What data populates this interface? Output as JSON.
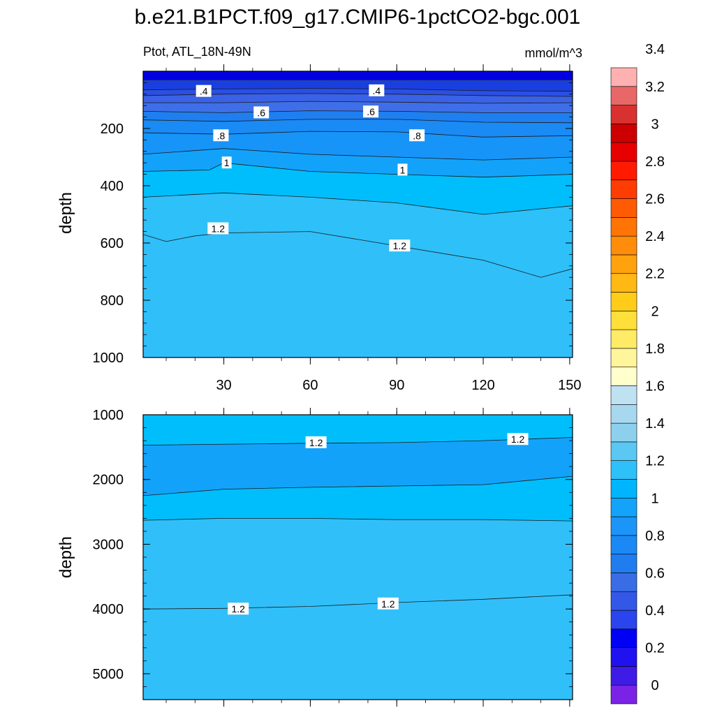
{
  "figure": {
    "title": "b.e21.B1PCT.f09_g17.CMIP6-1pctCO2-bgc.001",
    "variable_label": "Ptot, ATL_18N-49N",
    "units": "mmol/m^3"
  },
  "chart_data": [
    {
      "type": "contour",
      "panel": "upper",
      "ylabel": "depth",
      "y_reversed": true,
      "xlim": [
        2,
        151
      ],
      "ylim": [
        0,
        1000
      ],
      "x_ticks": [
        30,
        60,
        90,
        120,
        150
      ],
      "x_tick_labels": [
        "30",
        "60",
        "90",
        "120",
        "150"
      ],
      "y_ticks": [
        200,
        400,
        600,
        800,
        1000
      ],
      "y_tick_labels": [
        "200",
        "400",
        "600",
        "800",
        "1000"
      ],
      "bands": [
        {
          "level": 0.2,
          "color": "#0000E0",
          "profile": [
            [
              2,
              30
            ],
            [
              150,
              30
            ]
          ]
        },
        {
          "level": 0.3,
          "color": "#1A3FE0",
          "profile": [
            [
              2,
              65
            ],
            [
              30,
              62
            ],
            [
              60,
              60
            ],
            [
              90,
              62
            ],
            [
              120,
              68
            ],
            [
              150,
              70
            ]
          ]
        },
        {
          "level": 0.4,
          "color": "#2A4FE2",
          "profile": [
            [
              2,
              85
            ],
            [
              30,
              80
            ],
            [
              60,
              78
            ],
            [
              90,
              80
            ],
            [
              120,
              85
            ],
            [
              150,
              88
            ]
          ]
        },
        {
          "level": 0.5,
          "color": "#3A62E6",
          "profile": [
            [
              2,
              110
            ],
            [
              30,
              110
            ],
            [
              60,
              105
            ],
            [
              90,
              108
            ],
            [
              120,
              112
            ],
            [
              150,
              110
            ]
          ]
        },
        {
          "level": 0.6,
          "color": "#3F6FE8",
          "profile": [
            [
              2,
              140
            ],
            [
              30,
              145
            ],
            [
              60,
              138
            ],
            [
              90,
              140
            ],
            [
              120,
              145
            ],
            [
              150,
              145
            ]
          ]
        },
        {
          "level": 0.7,
          "color": "#1E7FF0",
          "profile": [
            [
              2,
              170
            ],
            [
              30,
              175
            ],
            [
              60,
              168
            ],
            [
              90,
              168
            ],
            [
              120,
              178
            ],
            [
              150,
              180
            ]
          ]
        },
        {
          "level": 0.8,
          "color": "#1A8AF5",
          "profile": [
            [
              2,
              215
            ],
            [
              30,
              220
            ],
            [
              60,
              210
            ],
            [
              90,
              212
            ],
            [
              120,
              230
            ],
            [
              150,
              225
            ]
          ]
        },
        {
          "level": 0.9,
          "color": "#1794F8",
          "profile": [
            [
              2,
              290
            ],
            [
              30,
              270
            ],
            [
              60,
              290
            ],
            [
              90,
              300
            ],
            [
              120,
              310
            ],
            [
              150,
              300
            ]
          ]
        },
        {
          "level": 1.0,
          "color": "#13A2FA",
          "profile": [
            [
              2,
              350
            ],
            [
              25,
              345
            ],
            [
              30,
              320
            ],
            [
              60,
              350
            ],
            [
              90,
              360
            ],
            [
              120,
              370
            ],
            [
              150,
              360
            ]
          ]
        },
        {
          "level": 1.1,
          "color": "#00BEFC",
          "profile": [
            [
              2,
              440
            ],
            [
              30,
              425
            ],
            [
              60,
              440
            ],
            [
              90,
              460
            ],
            [
              120,
              500
            ],
            [
              150,
              470
            ]
          ]
        },
        {
          "level": 1.2,
          "color": "#2EC0F8",
          "profile": [
            [
              2,
              570
            ],
            [
              10,
              595
            ],
            [
              20,
              575
            ],
            [
              30,
              565
            ],
            [
              60,
              560
            ],
            [
              90,
              610
            ],
            [
              120,
              660
            ],
            [
              140,
              720
            ],
            [
              150,
              690
            ]
          ]
        }
      ],
      "contour_labels": [
        {
          "text": ".4",
          "x": 23,
          "y": 70
        },
        {
          "text": ".4",
          "x": 83,
          "y": 68
        },
        {
          "text": ".6",
          "x": 43,
          "y": 145
        },
        {
          "text": ".6",
          "x": 81,
          "y": 142
        },
        {
          "text": ".8",
          "x": 29,
          "y": 225
        },
        {
          "text": ".8",
          "x": 97,
          "y": 225
        },
        {
          "text": "1",
          "x": 31,
          "y": 320
        },
        {
          "text": "1",
          "x": 92,
          "y": 345
        },
        {
          "text": "1.2",
          "x": 28,
          "y": 550
        },
        {
          "text": "1.2",
          "x": 91,
          "y": 610
        }
      ],
      "background_color": "#31BFF9"
    },
    {
      "type": "contour",
      "panel": "lower",
      "ylabel": "depth",
      "y_reversed": true,
      "xlim": [
        2,
        151
      ],
      "ylim": [
        1000,
        5400
      ],
      "y_ticks": [
        1000,
        2000,
        3000,
        4000,
        5000
      ],
      "y_tick_labels": [
        "1000",
        "2000",
        "3000",
        "4000",
        "5000"
      ],
      "bands": [
        {
          "level": 1.2,
          "color": "#00BEFC",
          "profile": [
            [
              2,
              1470
            ],
            [
              60,
              1440
            ],
            [
              90,
              1430
            ],
            [
              120,
              1400
            ],
            [
              150,
              1350
            ]
          ]
        },
        {
          "level": 1.1,
          "color": "#13A2FA",
          "profile": [
            [
              2,
              2250
            ],
            [
              30,
              2150
            ],
            [
              60,
              2120
            ],
            [
              90,
              2100
            ],
            [
              120,
              2080
            ],
            [
              150,
              1950
            ]
          ]
        },
        {
          "level": 1.2,
          "color": "#00BEFC",
          "profile": [
            [
              2,
              2630
            ],
            [
              30,
              2600
            ],
            [
              60,
              2600
            ],
            [
              90,
              2620
            ],
            [
              120,
              2620
            ],
            [
              150,
              2640
            ]
          ]
        },
        {
          "level": 1.25,
          "color": "#31BFF9",
          "profile": [
            [
              2,
              4000
            ],
            [
              30,
              3990
            ],
            [
              60,
              3960
            ],
            [
              90,
              3900
            ],
            [
              120,
              3850
            ],
            [
              150,
              3780
            ]
          ]
        }
      ],
      "contour_labels": [
        {
          "text": "1.2",
          "x": 62,
          "y": 1430
        },
        {
          "text": "1.2",
          "x": 132,
          "y": 1380
        },
        {
          "text": "1.2",
          "x": 35,
          "y": 4000
        },
        {
          "text": "1.2",
          "x": 87,
          "y": 3920
        }
      ],
      "background_color": "#31BFF9"
    }
  ],
  "colorbar": {
    "labels": [
      "0",
      "0.2",
      "0.4",
      "0.6",
      "0.8",
      "1",
      "1.2",
      "1.4",
      "1.6",
      "1.8",
      "2",
      "2.2",
      "2.4",
      "2.6",
      "2.8",
      "3",
      "3.2",
      "3.4"
    ],
    "colors": [
      "#7A23E6",
      "#3F1BE6",
      "#2012F0",
      "#0000F5",
      "#2A44EE",
      "#3358E8",
      "#3A6CE6",
      "#1F7DF0",
      "#1A89F5",
      "#1B95F8",
      "#13A3FA",
      "#00B5FC",
      "#2EC0F8",
      "#5AC8F2",
      "#8DD0EE",
      "#A8D8EF",
      "#BEE2F2",
      "#FFFFCC",
      "#FFF59A",
      "#FFEB66",
      "#FFE03A",
      "#FFCC1A",
      "#FFB814",
      "#FFA20E",
      "#FF8C0A",
      "#FF7406",
      "#FF5A04",
      "#FF3C02",
      "#FF1A00",
      "#E60000",
      "#CC0000",
      "#D93030",
      "#E86868",
      "#FFB0B0"
    ]
  }
}
